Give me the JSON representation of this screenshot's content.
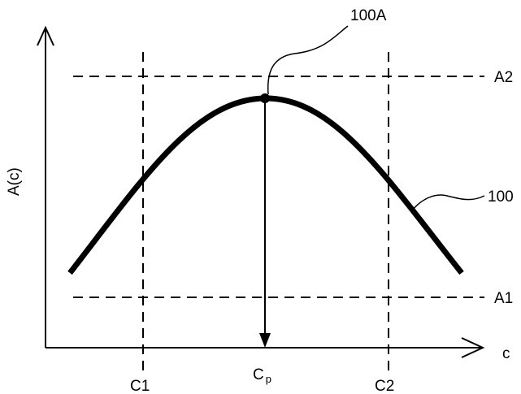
{
  "diagram": {
    "y_axis_label": "A(c)",
    "x_axis_label": "c",
    "upper_level_label": "A2",
    "lower_level_label": "A1",
    "left_bound_label": "C1",
    "right_bound_label": "C2",
    "peak_position_label_main": "C",
    "peak_position_label_sub": "p",
    "curve_label": "100",
    "peak_point_label": "100A"
  },
  "colors": {
    "ink": "#000000",
    "background": "#ffffff"
  }
}
